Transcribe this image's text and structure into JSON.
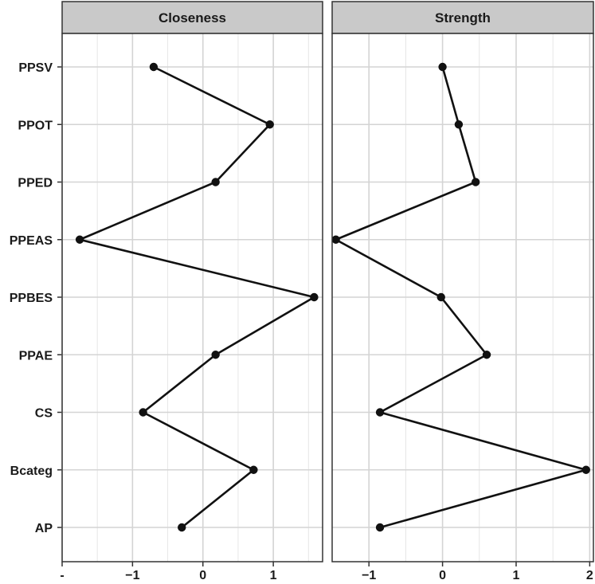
{
  "chart_data": {
    "type": "line",
    "orientation": "horizontal-values",
    "y_categories": [
      "PPSV",
      "PPOT",
      "PPED",
      "PPEAS",
      "PPBES",
      "PPAE",
      "CS",
      "Bcateg",
      "AP"
    ],
    "grid": true,
    "panels": [
      {
        "strip_label": "Closeness",
        "xlim": [
          -2.0,
          1.7
        ],
        "x_ticks": [
          -2,
          -1,
          0,
          1
        ],
        "x_tick_labels": [
          "-",
          "−1",
          "0",
          "1"
        ],
        "values": [
          -0.7,
          0.95,
          0.18,
          -1.75,
          1.58,
          0.18,
          -0.85,
          0.72,
          -0.3
        ]
      },
      {
        "strip_label": "Strength",
        "xlim": [
          -1.5,
          2.05
        ],
        "x_ticks": [
          -1,
          0,
          1,
          2
        ],
        "x_tick_labels": [
          "−1",
          "0",
          "1",
          "2"
        ],
        "values": [
          0.0,
          0.22,
          0.45,
          -1.45,
          -0.02,
          0.6,
          -0.85,
          1.95,
          -0.85
        ]
      }
    ]
  }
}
